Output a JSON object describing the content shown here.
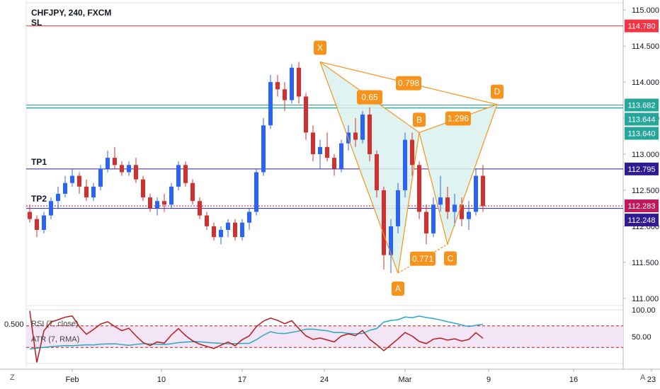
{
  "header": {
    "symbol": "CHFJPY, 240, FXCM",
    "sl_label": "SL"
  },
  "scale_buttons": {
    "left": "Z",
    "right": "A"
  },
  "colors": {
    "up": "#2962ff",
    "down": "#d32f2f",
    "pattern": "#f7931a",
    "pattern_fill": "#d9f2ee",
    "sl": "#f23645",
    "tp": "#311b92",
    "tp_dotted": "#c2185b",
    "teal": "#26a69a",
    "rsi": "#b71c1c",
    "atr": "#2aa7c4",
    "rsi_band": "#f3e5f5"
  },
  "chart_data": [
    {
      "type": "line",
      "title": "CHFJPY, 240, FXCM",
      "description_series": "Candlestick price chart with harmonic (bat/crab-like) XABCD pattern",
      "y_axis": {
        "ticks": [
          "115.000",
          "114.500",
          "114.000",
          "113.500",
          "113.000",
          "112.500",
          "112.000",
          "111.500",
          "111.000"
        ],
        "ylim": [
          110.9,
          115.1
        ]
      },
      "x_axis": {
        "ticks": [
          "Feb",
          "10",
          "17",
          "24",
          "Mar",
          "9",
          "16",
          "23"
        ]
      },
      "candles": [
        [
          112.2,
          112.3,
          112.05,
          112.1
        ],
        [
          112.1,
          112.15,
          111.85,
          111.95
        ],
        [
          111.95,
          112.2,
          111.9,
          112.15
        ],
        [
          112.15,
          112.4,
          112.1,
          112.35
        ],
        [
          112.35,
          112.55,
          112.25,
          112.45
        ],
        [
          112.45,
          112.7,
          112.4,
          112.6
        ],
        [
          112.6,
          112.8,
          112.55,
          112.7
        ],
        [
          112.7,
          112.75,
          112.45,
          112.55
        ],
        [
          112.55,
          112.65,
          112.35,
          112.4
        ],
        [
          112.4,
          112.6,
          112.35,
          112.55
        ],
        [
          112.55,
          112.85,
          112.5,
          112.8
        ],
        [
          112.8,
          113.05,
          112.75,
          112.95
        ],
        [
          112.95,
          113.1,
          112.8,
          112.85
        ],
        [
          112.85,
          112.9,
          112.7,
          112.75
        ],
        [
          112.75,
          112.9,
          112.7,
          112.85
        ],
        [
          112.85,
          112.95,
          112.6,
          112.65
        ],
        [
          112.65,
          112.7,
          112.35,
          112.4
        ],
        [
          112.4,
          112.45,
          112.2,
          112.25
        ],
        [
          112.25,
          112.4,
          112.15,
          112.35
        ],
        [
          112.35,
          112.45,
          112.2,
          112.3
        ],
        [
          112.3,
          112.6,
          112.25,
          112.55
        ],
        [
          112.55,
          112.9,
          112.5,
          112.85
        ],
        [
          112.85,
          112.9,
          112.55,
          112.6
        ],
        [
          112.6,
          112.65,
          112.3,
          112.35
        ],
        [
          112.35,
          112.4,
          112.1,
          112.15
        ],
        [
          112.15,
          112.2,
          111.95,
          112.0
        ],
        [
          112.0,
          112.05,
          111.8,
          111.85
        ],
        [
          111.85,
          112.0,
          111.75,
          111.95
        ],
        [
          111.95,
          112.1,
          111.85,
          112.05
        ],
        [
          112.05,
          112.1,
          111.8,
          111.85
        ],
        [
          111.85,
          112.1,
          111.8,
          112.05
        ],
        [
          112.05,
          112.25,
          111.95,
          112.2
        ],
        [
          112.2,
          112.8,
          112.15,
          112.75
        ],
        [
          112.75,
          113.5,
          112.7,
          113.4
        ],
        [
          113.4,
          114.1,
          113.35,
          114.0
        ],
        [
          114.0,
          114.1,
          113.8,
          113.9
        ],
        [
          113.9,
          114.0,
          113.6,
          113.75
        ],
        [
          113.75,
          114.25,
          113.7,
          114.2
        ],
        [
          114.2,
          114.28,
          113.7,
          113.8
        ],
        [
          113.8,
          113.85,
          113.2,
          113.3
        ],
        [
          113.3,
          113.4,
          112.9,
          113.0
        ],
        [
          113.0,
          113.2,
          112.8,
          113.1
        ],
        [
          113.1,
          113.3,
          112.9,
          112.95
        ],
        [
          112.95,
          113.0,
          112.7,
          112.8
        ],
        [
          112.8,
          113.2,
          112.75,
          113.15
        ],
        [
          113.15,
          113.4,
          113.05,
          113.3
        ],
        [
          113.3,
          113.5,
          113.1,
          113.2
        ],
        [
          113.2,
          113.6,
          113.15,
          113.55
        ],
        [
          113.55,
          113.65,
          112.9,
          113.0
        ],
        [
          113.0,
          113.05,
          112.4,
          112.5
        ],
        [
          112.5,
          112.55,
          111.4,
          111.6
        ],
        [
          111.6,
          112.1,
          111.35,
          112.0
        ],
        [
          112.0,
          112.6,
          111.9,
          112.5
        ],
        [
          112.5,
          113.3,
          112.4,
          113.2
        ],
        [
          113.2,
          113.3,
          112.7,
          112.85
        ],
        [
          112.85,
          112.9,
          112.1,
          112.2
        ],
        [
          112.2,
          112.3,
          111.75,
          111.9
        ],
        [
          111.9,
          112.4,
          111.85,
          112.3
        ],
        [
          112.3,
          112.7,
          112.2,
          112.4
        ],
        [
          112.4,
          112.55,
          112.1,
          112.2
        ],
        [
          112.2,
          112.45,
          112.0,
          112.3
        ],
        [
          112.3,
          112.4,
          112.0,
          112.1
        ],
        [
          112.1,
          112.35,
          111.95,
          112.2
        ],
        [
          112.2,
          112.8,
          112.15,
          112.7
        ],
        [
          112.7,
          112.85,
          112.2,
          112.28
        ]
      ],
      "pattern_points": [
        {
          "label": "X",
          "price": 114.28
        },
        {
          "label": "A",
          "price": 111.35
        },
        {
          "label": "B",
          "price": 113.3
        },
        {
          "label": "C",
          "price": 111.75
        },
        {
          "label": "D",
          "price": 113.69
        }
      ],
      "ratios": [
        {
          "label": "0.798"
        },
        {
          "label": "0.65"
        },
        {
          "label": "1.296"
        },
        {
          "label": "0.771"
        }
      ],
      "levels": [
        {
          "label": "SL",
          "price": "114.780",
          "value": 114.78
        },
        {
          "label": "",
          "price": "113.682",
          "value": 113.682
        },
        {
          "label": "",
          "price": "113.640",
          "value": 113.64
        },
        {
          "label": "",
          "price": "113.644",
          "value": 113.644
        },
        {
          "label": "TP1",
          "price": "112.795",
          "value": 112.795
        },
        {
          "label": "TP2",
          "price": "112.283",
          "value": 112.283
        },
        {
          "label": "",
          "price": "112.248",
          "value": 112.248
        }
      ]
    },
    {
      "type": "line",
      "indicators": [
        {
          "name": "RSI (7, close)"
        },
        {
          "name": "ATR (7, RMA)"
        }
      ],
      "left_value": "0.500",
      "y_ticks": [
        "100.00",
        "50.00"
      ],
      "ylim": [
        0,
        100
      ],
      "rsi_band": [
        30,
        70
      ]
    }
  ]
}
